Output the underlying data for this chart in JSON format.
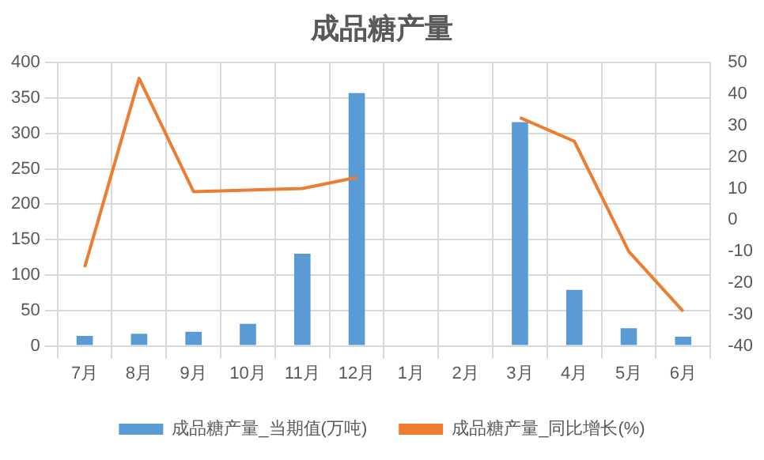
{
  "chart_data": {
    "type": "bar",
    "title": "成品糖产量",
    "categories": [
      "7月",
      "8月",
      "9月",
      "10月",
      "11月",
      "12月",
      "1月",
      "2月",
      "3月",
      "4月",
      "5月",
      "6月"
    ],
    "series": [
      {
        "name": "成品糖产量_当期值(万吨)",
        "color": "#5b9bd5",
        "values": [
          14,
          17,
          20,
          31,
          130,
          357,
          null,
          null,
          316,
          79,
          25,
          13
        ]
      },
      {
        "name": "成品糖产量_同比增长(%)",
        "type": "line",
        "axis": "y2",
        "color": "#ed7d31",
        "values": [
          -15,
          45,
          9,
          9.5,
          10,
          13.5,
          null,
          null,
          32.5,
          25,
          -10,
          -29
        ]
      }
    ],
    "ylim": [
      0,
      400
    ],
    "yticks": [
      0,
      50,
      100,
      150,
      200,
      250,
      300,
      350,
      400
    ],
    "y2lim": [
      -40,
      50
    ],
    "y2ticks": [
      -40,
      -30,
      -20,
      -10,
      0,
      10,
      20,
      30,
      40,
      50
    ],
    "grid": true,
    "legend": "bottom",
    "marker": "none",
    "line_style": "solid"
  }
}
